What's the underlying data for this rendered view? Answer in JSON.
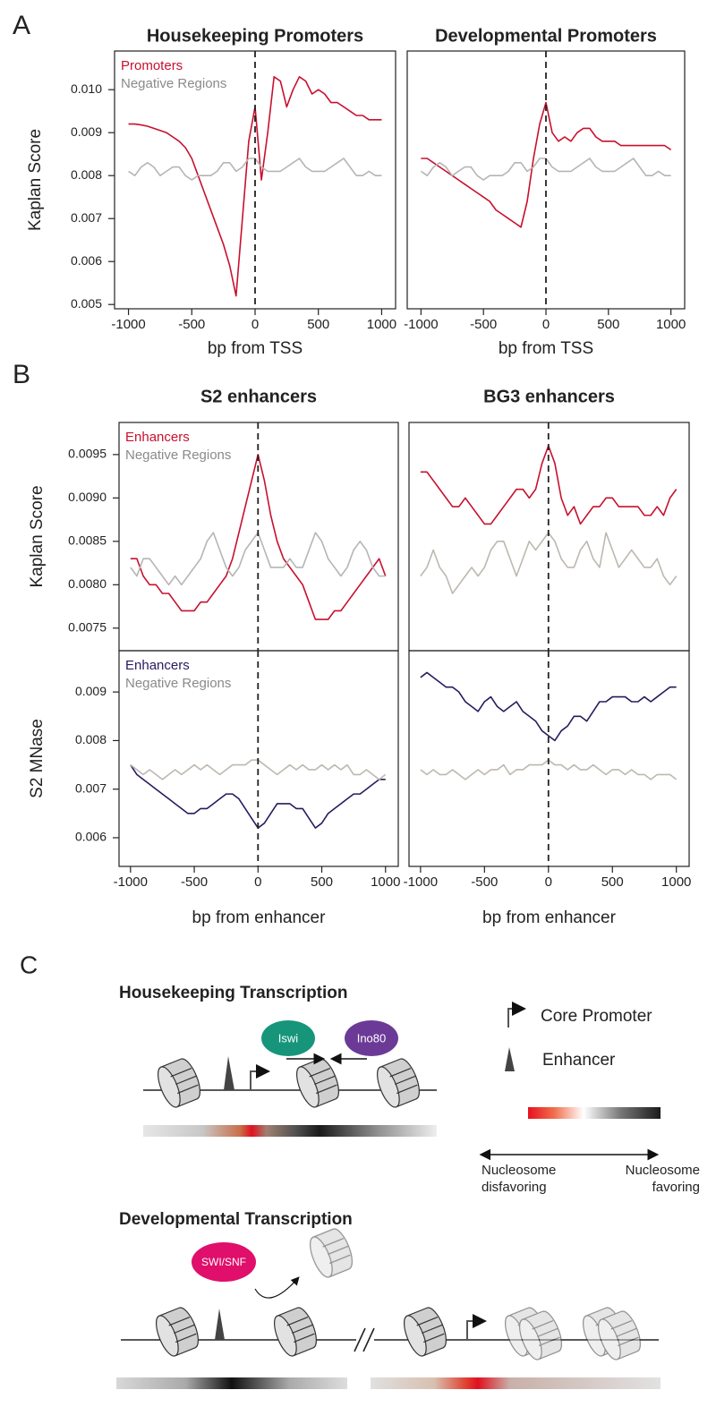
{
  "panel_labels": [
    "A",
    "B",
    "C"
  ],
  "chart_data": [
    {
      "type": "line",
      "title": "Housekeeping Promoters",
      "x_label": "bp from TSS",
      "y_label": "Kaplan Score",
      "xlim": [
        -1110,
        1110
      ],
      "ylim": [
        0.0049,
        0.0109
      ],
      "xticks": [
        -1000,
        -500,
        0,
        500,
        1000
      ],
      "yticks": [
        0.005,
        0.006,
        0.007,
        0.008,
        0.009,
        {
          "value": 0.01,
          "label": "0.010"
        }
      ],
      "vline": 0,
      "legend": "top-left",
      "x": [
        -1000,
        -950,
        -900,
        -850,
        -800,
        -750,
        -700,
        -650,
        -600,
        -550,
        -500,
        -450,
        -400,
        -350,
        -300,
        -250,
        -200,
        -150,
        -100,
        -50,
        0,
        50,
        100,
        150,
        200,
        250,
        300,
        350,
        400,
        450,
        500,
        550,
        600,
        650,
        700,
        750,
        800,
        850,
        900,
        950,
        1000
      ],
      "series": [
        {
          "name": "Promoters",
          "color": "#c8102e",
          "values": [
            0.0092,
            0.0092,
            0.00918,
            0.00915,
            0.0091,
            0.00905,
            0.009,
            0.0089,
            0.0088,
            0.00865,
            0.0084,
            0.008,
            0.0076,
            0.0072,
            0.0068,
            0.0064,
            0.0059,
            0.0052,
            0.007,
            0.0088,
            0.0096,
            0.0079,
            0.009,
            0.0103,
            0.0102,
            0.0096,
            0.01,
            0.0103,
            0.0102,
            0.0099,
            0.01,
            0.0099,
            0.0097,
            0.0097,
            0.0096,
            0.0095,
            0.0094,
            0.0094,
            0.0093,
            0.0093,
            0.0093
          ]
        },
        {
          "name": "Negative Regions",
          "color": "#b5b5b5",
          "values": [
            0.0081,
            0.008,
            0.0082,
            0.0083,
            0.0082,
            0.008,
            0.0081,
            0.0082,
            0.0082,
            0.008,
            0.0079,
            0.008,
            0.008,
            0.008,
            0.0081,
            0.0083,
            0.0083,
            0.0081,
            0.0082,
            0.0084,
            0.0084,
            0.0082,
            0.0081,
            0.0081,
            0.0081,
            0.0082,
            0.0083,
            0.0084,
            0.0082,
            0.0081,
            0.0081,
            0.0081,
            0.0082,
            0.0083,
            0.0084,
            0.0082,
            0.008,
            0.008,
            0.0081,
            0.008,
            0.008
          ]
        }
      ]
    },
    {
      "type": "line",
      "title": "Developmental Promoters",
      "x_label": "bp from TSS",
      "xlim": [
        -1110,
        1110
      ],
      "ylim": [
        0.0049,
        0.0109
      ],
      "xticks": [
        -1000,
        -500,
        0,
        500,
        1000
      ],
      "vline": 0,
      "x": [
        -1000,
        -950,
        -900,
        -850,
        -800,
        -750,
        -700,
        -650,
        -600,
        -550,
        -500,
        -450,
        -400,
        -350,
        -300,
        -250,
        -200,
        -150,
        -100,
        -50,
        0,
        50,
        100,
        150,
        200,
        250,
        300,
        350,
        400,
        450,
        500,
        550,
        600,
        650,
        700,
        750,
        800,
        850,
        900,
        950,
        1000
      ],
      "series": [
        {
          "color": "#c8102e",
          "values": [
            0.0084,
            0.0084,
            0.0083,
            0.0082,
            0.0081,
            0.008,
            0.0079,
            0.0078,
            0.0077,
            0.0076,
            0.0075,
            0.0074,
            0.0072,
            0.0071,
            0.007,
            0.0069,
            0.0068,
            0.0074,
            0.0084,
            0.0092,
            0.0097,
            0.009,
            0.0088,
            0.0089,
            0.0088,
            0.009,
            0.0091,
            0.0091,
            0.0089,
            0.0088,
            0.0088,
            0.0088,
            0.0087,
            0.0087,
            0.0087,
            0.0087,
            0.0087,
            0.0087,
            0.0087,
            0.0087,
            0.0086
          ]
        },
        {
          "color": "#b5b5b5",
          "values": [
            0.0081,
            0.008,
            0.0082,
            0.0083,
            0.0082,
            0.008,
            0.0081,
            0.0082,
            0.0082,
            0.008,
            0.0079,
            0.008,
            0.008,
            0.008,
            0.0081,
            0.0083,
            0.0083,
            0.0081,
            0.0082,
            0.0084,
            0.0084,
            0.0082,
            0.0081,
            0.0081,
            0.0081,
            0.0082,
            0.0083,
            0.0084,
            0.0082,
            0.0081,
            0.0081,
            0.0081,
            0.0082,
            0.0083,
            0.0084,
            0.0082,
            0.008,
            0.008,
            0.0081,
            0.008,
            0.008
          ]
        }
      ]
    },
    {
      "type": "line",
      "title": "S2 enhancers",
      "y_label": "Kaplan Score",
      "xlim": [
        -1090,
        1100
      ],
      "ylim": [
        0.00724,
        0.00987
      ],
      "yticks": [
        0.0075,
        {
          "value": 0.008,
          "label": "0.0080"
        },
        0.0085,
        {
          "value": 0.009,
          "label": "0.0090"
        },
        0.0095
      ],
      "vline": 0,
      "legend": "top-left",
      "x": [
        -1000,
        -950,
        -900,
        -850,
        -800,
        -750,
        -700,
        -650,
        -600,
        -550,
        -500,
        -450,
        -400,
        -350,
        -300,
        -250,
        -200,
        -150,
        -100,
        -50,
        0,
        50,
        100,
        150,
        200,
        250,
        300,
        350,
        400,
        450,
        500,
        550,
        600,
        650,
        700,
        750,
        800,
        850,
        900,
        950,
        1000
      ],
      "series": [
        {
          "name": "Enhancers",
          "color": "#c8102e",
          "values": [
            0.0083,
            0.0083,
            0.0081,
            0.008,
            0.008,
            0.0079,
            0.0079,
            0.0078,
            0.0077,
            0.0077,
            0.0077,
            0.0078,
            0.0078,
            0.0079,
            0.008,
            0.0081,
            0.0083,
            0.0086,
            0.0089,
            0.0092,
            0.0095,
            0.0092,
            0.0088,
            0.0085,
            0.0083,
            0.0082,
            0.0081,
            0.008,
            0.0078,
            0.0076,
            0.0076,
            0.0076,
            0.0077,
            0.0077,
            0.0078,
            0.0079,
            0.008,
            0.0081,
            0.0082,
            0.0083,
            0.0081
          ]
        },
        {
          "name": "Negative Regions",
          "color": "#b5b5b5",
          "values": [
            0.0082,
            0.0081,
            0.0083,
            0.0083,
            0.0082,
            0.0081,
            0.008,
            0.0081,
            0.008,
            0.0081,
            0.0082,
            0.0083,
            0.0085,
            0.0086,
            0.0084,
            0.0082,
            0.0081,
            0.0082,
            0.0084,
            0.0085,
            0.0086,
            0.0084,
            0.0082,
            0.0082,
            0.0082,
            0.0083,
            0.0082,
            0.0082,
            0.0084,
            0.0086,
            0.0085,
            0.0083,
            0.0082,
            0.0081,
            0.0082,
            0.0084,
            0.0085,
            0.0084,
            0.0082,
            0.0081,
            0.0081
          ]
        }
      ]
    },
    {
      "type": "line",
      "title": "BG3 enhancers",
      "xlim": [
        -1090,
        1100
      ],
      "ylim": [
        0.00724,
        0.00987
      ],
      "vline": 0,
      "x": [
        -1000,
        -950,
        -900,
        -850,
        -800,
        -750,
        -700,
        -650,
        -600,
        -550,
        -500,
        -450,
        -400,
        -350,
        -300,
        -250,
        -200,
        -150,
        -100,
        -50,
        0,
        50,
        100,
        150,
        200,
        250,
        300,
        350,
        400,
        450,
        500,
        550,
        600,
        650,
        700,
        750,
        800,
        850,
        900,
        950,
        1000
      ],
      "series": [
        {
          "color": "#c8102e",
          "values": [
            0.0093,
            0.0093,
            0.0092,
            0.0091,
            0.009,
            0.0089,
            0.0089,
            0.009,
            0.0089,
            0.0088,
            0.0087,
            0.0087,
            0.0088,
            0.0089,
            0.009,
            0.0091,
            0.0091,
            0.009,
            0.0091,
            0.0094,
            0.0096,
            0.0094,
            0.009,
            0.0088,
            0.0089,
            0.0087,
            0.0088,
            0.0089,
            0.0089,
            0.009,
            0.009,
            0.0089,
            0.0089,
            0.0089,
            0.0089,
            0.0088,
            0.0088,
            0.0089,
            0.0088,
            0.009,
            0.0091
          ]
        },
        {
          "color": "#bdb8b0",
          "values": [
            0.0081,
            0.0082,
            0.0084,
            0.0082,
            0.0081,
            0.0079,
            0.008,
            0.0081,
            0.0082,
            0.0081,
            0.0082,
            0.0084,
            0.0085,
            0.0085,
            0.0083,
            0.0081,
            0.0083,
            0.0085,
            0.0084,
            0.0085,
            0.0086,
            0.0085,
            0.0083,
            0.0082,
            0.0082,
            0.0084,
            0.0085,
            0.0083,
            0.0082,
            0.0086,
            0.0084,
            0.0082,
            0.0083,
            0.0084,
            0.0083,
            0.0082,
            0.0082,
            0.0083,
            0.0081,
            0.008,
            0.0081
          ]
        }
      ]
    },
    {
      "type": "line",
      "x_label": "bp from enhancer",
      "y_label": "S2 MNase",
      "xlim": [
        -1090,
        1100
      ],
      "ylim": [
        0.00541,
        0.00985
      ],
      "xticks": [
        -1000,
        -500,
        0,
        500,
        1000
      ],
      "yticks": [
        0.006,
        0.007,
        0.008,
        0.009
      ],
      "vline": 0,
      "legend": "top-left",
      "x": [
        -1000,
        -950,
        -900,
        -850,
        -800,
        -750,
        -700,
        -650,
        -600,
        -550,
        -500,
        -450,
        -400,
        -350,
        -300,
        -250,
        -200,
        -150,
        -100,
        -50,
        0,
        50,
        100,
        150,
        200,
        250,
        300,
        350,
        400,
        450,
        500,
        550,
        600,
        650,
        700,
        750,
        800,
        850,
        900,
        950,
        1000
      ],
      "series": [
        {
          "name": "Enhancers",
          "color": "#2a1a5e",
          "values": [
            0.0075,
            0.0073,
            0.0072,
            0.0071,
            0.007,
            0.0069,
            0.0068,
            0.0067,
            0.0066,
            0.0065,
            0.0065,
            0.0066,
            0.0066,
            0.0067,
            0.0068,
            0.0069,
            0.0069,
            0.0068,
            0.0066,
            0.0064,
            0.0062,
            0.0063,
            0.0065,
            0.0067,
            0.0067,
            0.0067,
            0.0066,
            0.0066,
            0.0064,
            0.0062,
            0.0063,
            0.0065,
            0.0066,
            0.0067,
            0.0068,
            0.0069,
            0.0069,
            0.007,
            0.0071,
            0.0072,
            0.0072
          ]
        },
        {
          "name": "Negative Regions",
          "color": "#bdb8b0",
          "values": [
            0.0075,
            0.0074,
            0.0073,
            0.0074,
            0.0073,
            0.0072,
            0.0073,
            0.0074,
            0.0073,
            0.0074,
            0.0075,
            0.0074,
            0.0075,
            0.0074,
            0.0073,
            0.0074,
            0.0075,
            0.0075,
            0.0075,
            0.0076,
            0.0076,
            0.0075,
            0.0074,
            0.0073,
            0.0074,
            0.0075,
            0.0074,
            0.0075,
            0.0074,
            0.0074,
            0.0075,
            0.0074,
            0.0075,
            0.0074,
            0.0075,
            0.0073,
            0.0073,
            0.0074,
            0.0073,
            0.0072,
            0.0073
          ]
        }
      ]
    },
    {
      "type": "line",
      "x_label": "bp from enhancer",
      "xlim": [
        -1090,
        1100
      ],
      "ylim": [
        0.00541,
        0.00985
      ],
      "xticks": [
        -1000,
        -500,
        0,
        500,
        1000
      ],
      "vline": 0,
      "x": [
        -1000,
        -950,
        -900,
        -850,
        -800,
        -750,
        -700,
        -650,
        -600,
        -550,
        -500,
        -450,
        -400,
        -350,
        -300,
        -250,
        -200,
        -150,
        -100,
        -50,
        0,
        50,
        100,
        150,
        200,
        250,
        300,
        350,
        400,
        450,
        500,
        550,
        600,
        650,
        700,
        750,
        800,
        850,
        900,
        950,
        1000
      ],
      "series": [
        {
          "color": "#2a1a5e",
          "values": [
            0.0093,
            0.0094,
            0.0093,
            0.0092,
            0.0091,
            0.0091,
            0.009,
            0.0088,
            0.0087,
            0.0086,
            0.0088,
            0.0089,
            0.0087,
            0.0086,
            0.0087,
            0.0088,
            0.0086,
            0.0085,
            0.0084,
            0.0082,
            0.0081,
            0.008,
            0.0082,
            0.0083,
            0.0085,
            0.0085,
            0.0084,
            0.0086,
            0.0088,
            0.0088,
            0.0089,
            0.0089,
            0.0089,
            0.0088,
            0.0088,
            0.0089,
            0.0088,
            0.0089,
            0.009,
            0.0091,
            0.0091
          ]
        },
        {
          "color": "#bdb8b0",
          "values": [
            0.0074,
            0.0073,
            0.0074,
            0.0073,
            0.0073,
            0.0074,
            0.0073,
            0.0072,
            0.0073,
            0.0074,
            0.0073,
            0.0074,
            0.0074,
            0.0075,
            0.0073,
            0.0074,
            0.0074,
            0.0075,
            0.0075,
            0.0075,
            0.0076,
            0.0075,
            0.0075,
            0.0074,
            0.0075,
            0.0074,
            0.0074,
            0.0075,
            0.0074,
            0.0073,
            0.0074,
            0.0074,
            0.0073,
            0.0074,
            0.0073,
            0.0073,
            0.0072,
            0.0073,
            0.0073,
            0.0073,
            0.0072
          ]
        }
      ]
    }
  ],
  "diagram": {
    "housekeeping": {
      "title": "Housekeeping Transcription",
      "factors": [
        "Iswi",
        "Ino80"
      ]
    },
    "developmental": {
      "title": "Developmental Transcription",
      "factors": [
        "SWI/SNF"
      ]
    },
    "legend": {
      "core_promoter": "Core Promoter",
      "enhancer": "Enhancer",
      "disfavoring": [
        "Nucleosome",
        "disfavoring"
      ],
      "favoring": [
        "Nucleosome",
        "favoring"
      ]
    }
  }
}
